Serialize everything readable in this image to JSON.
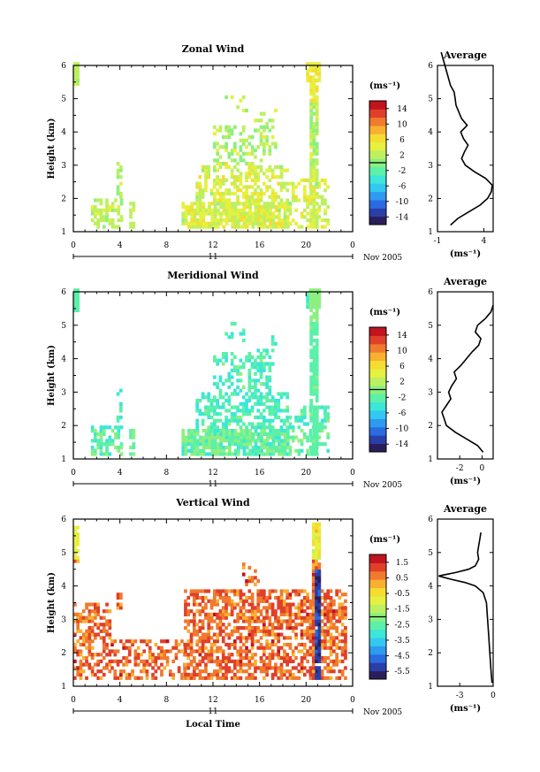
{
  "figure": {
    "date_label": "Nov 2005",
    "day_label": "11",
    "xlabel": "Local Time",
    "time_ticks": [
      "0",
      "4",
      "8",
      "12",
      "16",
      "20",
      "0"
    ],
    "height_ticks": [
      "1",
      "2",
      "3",
      "4",
      "5",
      "6"
    ],
    "ylabel": "Height (km)",
    "colorbar_unit": "(ms⁻¹)",
    "average_title": "Average",
    "average_unit": "(ms⁻¹)",
    "colormap": [
      "#2a1e5a",
      "#2b3fa8",
      "#2b6be0",
      "#2e9af0",
      "#33c8f0",
      "#3ce6d8",
      "#5cf0a8",
      "#8cf080",
      "#bdf060",
      "#e6f040",
      "#f5dd30",
      "#f8b030",
      "#f07a2e",
      "#e0402a",
      "#c0141e"
    ]
  },
  "chart_data": [
    {
      "type": "heatmap",
      "title": "Zonal Wind",
      "xlim": [
        0,
        24
      ],
      "ylim": [
        1,
        6
      ],
      "colorbar_ticks": [
        "14",
        "10",
        "6",
        "2",
        "-2",
        "-6",
        "-10",
        "-14"
      ],
      "colorbar_range": [
        -16,
        16
      ],
      "average_profile": {
        "xlim": [
          -1,
          5
        ],
        "xticks": [
          "-1",
          "4"
        ],
        "height": [
          1.2,
          1.4,
          1.6,
          1.8,
          2.0,
          2.2,
          2.4,
          2.6,
          2.8,
          3.0,
          3.2,
          3.4,
          3.6,
          3.8,
          4.0,
          4.2,
          4.4,
          4.6,
          4.8,
          5.0,
          5.2,
          5.4,
          5.6,
          5.8,
          6.0,
          6.2,
          6.4
        ],
        "value": [
          0.4,
          1.2,
          2.4,
          3.6,
          4.4,
          4.8,
          4.9,
          4.2,
          3.0,
          2.0,
          1.6,
          1.9,
          2.3,
          1.8,
          1.5,
          2.2,
          1.6,
          1.3,
          1.0,
          0.9,
          0.8,
          0.4,
          0.2,
          0.0,
          -0.2,
          -0.4,
          -0.6
        ]
      }
    },
    {
      "type": "heatmap",
      "title": "Meridional Wind",
      "xlim": [
        0,
        24
      ],
      "ylim": [
        1,
        6
      ],
      "colorbar_ticks": [
        "14",
        "10",
        "6",
        "2",
        "-2",
        "-6",
        "-10",
        "-14"
      ],
      "colorbar_range": [
        -16,
        16
      ],
      "average_profile": {
        "xlim": [
          -4,
          1
        ],
        "xticks": [
          "-2",
          "0"
        ],
        "height": [
          1.2,
          1.4,
          1.6,
          1.8,
          2.0,
          2.2,
          2.4,
          2.6,
          2.8,
          3.0,
          3.2,
          3.4,
          3.6,
          3.8,
          4.0,
          4.2,
          4.4,
          4.6,
          4.8,
          5.0,
          5.2,
          5.4,
          5.6
        ],
        "value": [
          0.1,
          -0.4,
          -1.4,
          -2.4,
          -3.2,
          -3.4,
          -3.6,
          -3.2,
          -2.8,
          -3.0,
          -2.7,
          -2.3,
          -2.5,
          -1.9,
          -1.4,
          -0.9,
          -0.3,
          -0.1,
          -0.6,
          -0.4,
          0.3,
          0.8,
          1.0
        ]
      }
    },
    {
      "type": "heatmap",
      "title": "Vertical Wind",
      "xlim": [
        0,
        24
      ],
      "ylim": [
        1,
        6
      ],
      "colorbar_ticks": [
        "1.5",
        "0.5",
        "-0.5",
        "-1.5",
        "-2.5",
        "-3.5",
        "-4.5",
        "-5.5"
      ],
      "colorbar_range": [
        -6.0,
        2.0
      ],
      "average_profile": {
        "xlim": [
          -5,
          0
        ],
        "xticks": [
          "-3",
          "0"
        ],
        "height": [
          1.1,
          1.5,
          2.0,
          2.5,
          3.0,
          3.5,
          3.8,
          4.0,
          4.1,
          4.2,
          4.3,
          4.4,
          4.5,
          4.6,
          4.8,
          5.0,
          5.2,
          5.4,
          5.6
        ],
        "value": [
          -0.1,
          -0.2,
          -0.3,
          -0.4,
          -0.5,
          -0.6,
          -0.9,
          -1.6,
          -2.5,
          -3.8,
          -4.9,
          -3.4,
          -2.2,
          -1.6,
          -1.3,
          -1.4,
          -1.3,
          -1.2,
          -1.1
        ]
      }
    }
  ]
}
